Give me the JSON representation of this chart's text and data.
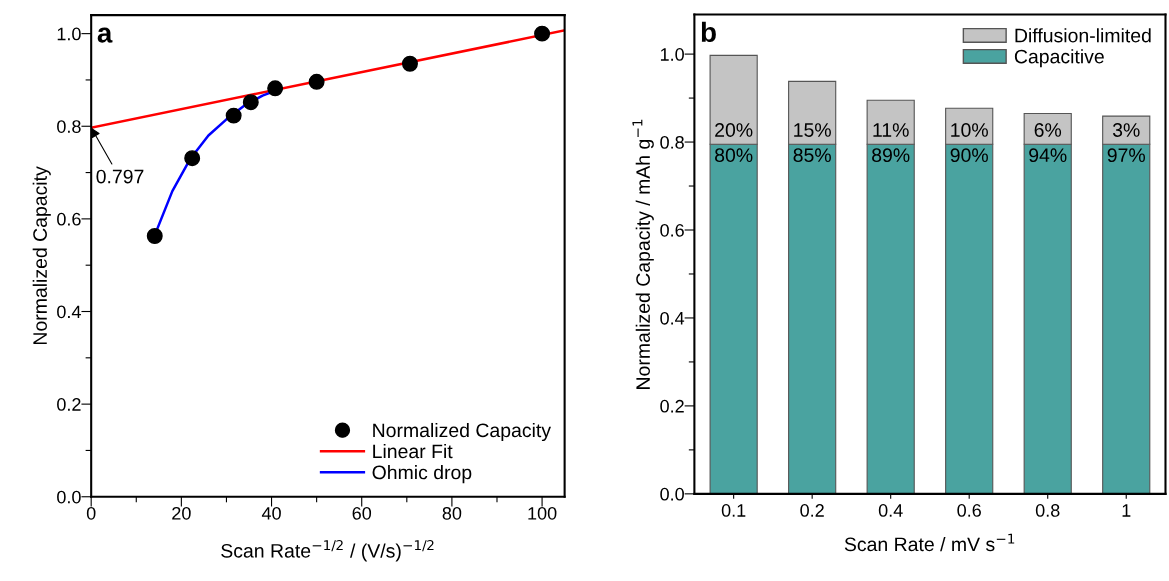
{
  "chart_data": [
    {
      "type": "scatter",
      "xlabel": "Scan Rate$^{−1/2}$ / (V/s)$^{−1/2}$",
      "ylabel": "Normalized Capacity",
      "xlim": [
        0,
        105
      ],
      "ylim": [
        0,
        1.04
      ],
      "xticks": [
        0,
        {
          "value": 10,
          "label": null
        },
        20,
        {
          "value": 30,
          "label": null
        },
        40,
        {
          "value": 50,
          "label": null
        },
        60,
        {
          "value": 70,
          "label": null
        },
        80,
        {
          "value": 90,
          "label": null
        },
        100
      ],
      "yticks": [
        "0.0",
        {
          "value": 0.1,
          "label": null
        },
        0.2,
        {
          "value": 0.3,
          "label": null
        },
        0.4,
        {
          "value": 0.5,
          "label": null
        },
        0.6,
        {
          "value": 0.7,
          "label": null
        },
        0.8,
        {
          "value": 0.9,
          "label": null
        },
        "1.0"
      ],
      "grid": false,
      "legend": "bottom right",
      "annotations": [
        "a",
        {
          "text": "0.797",
          "x": 0,
          "y": 0.797
        }
      ],
      "series": [
        {
          "name": "Linear Fit",
          "type": "line",
          "color": "#ff0000",
          "marker": "none",
          "x": [
            0,
            105
          ],
          "values": [
            0.797,
            1.007
          ]
        },
        {
          "name": "Ohmic drop",
          "type": "line",
          "color": "#0000ff",
          "marker": "none",
          "x": [
            14.1,
            18,
            22,
            26,
            30,
            34,
            38,
            41
          ],
          "values": [
            0.565,
            0.66,
            0.73,
            0.78,
            0.815,
            0.845,
            0.866,
            0.877
          ]
        },
        {
          "name": "Normalized Capacity",
          "type": "scatter",
          "color": "#000000",
          "marker": "circle",
          "x": [
            14.1,
            22.4,
            31.6,
            35.4,
            40.8,
            50,
            70.7,
            100
          ],
          "values": [
            0.563,
            0.731,
            0.823,
            0.852,
            0.882,
            0.896,
            0.935,
            1.0
          ]
        }
      ]
    },
    {
      "type": "bar",
      "stacked": true,
      "xlabel": "Scan Rate / mV s$^{−1}$",
      "ylabel": "Normalized Capacity / mAh g$^{−1}$",
      "categories": [
        "0.1",
        "0.2",
        "0.4",
        "0.6",
        "0.8",
        "1"
      ],
      "ylim": [
        0,
        1.09
      ],
      "yticks": [
        "0.0",
        {
          "value": 0.1,
          "label": null
        },
        0.2,
        {
          "value": 0.3,
          "label": null
        },
        0.4,
        {
          "value": 0.5,
          "label": null
        },
        0.6,
        {
          "value": 0.7,
          "label": null
        },
        0.8,
        {
          "value": 0.9,
          "label": null
        },
        "1.0"
      ],
      "grid": false,
      "legend": "top right",
      "annotations": [
        "b",
        "20%",
        "15%",
        "11%",
        "10%",
        "6%",
        "3%",
        "80%",
        "85%",
        "89%",
        "90%",
        "94%",
        "97%"
      ],
      "series": [
        {
          "name": "Capacitive",
          "color": "#4aa3a0",
          "values": [
            0.795,
            0.795,
            0.795,
            0.795,
            0.795,
            0.795
          ]
        },
        {
          "name": "Diffusion-limited",
          "color": "#c4c4c4",
          "values": [
            0.202,
            0.143,
            0.1,
            0.082,
            0.07,
            0.064
          ]
        }
      ]
    }
  ]
}
